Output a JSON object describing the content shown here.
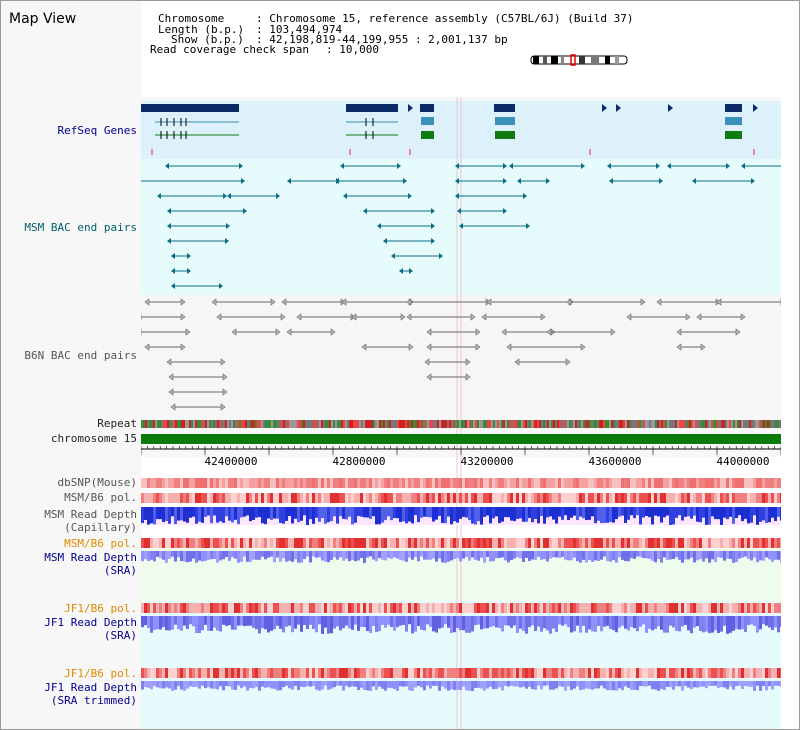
{
  "title": "Map View",
  "info": {
    "chromosome_label": "Chromosome",
    "chromosome_value": ": Chromosome 15, reference assembly (C57BL/6J) (Build 37)",
    "length_label": "Length (b.p.)",
    "length_value": ": 103,494,974",
    "show_label": "Show (b.p.)",
    "show_value": ": 42,198,819-44,199,955 : 2,001,137 bp",
    "coverage_label": "Read coverage check span",
    "coverage_value": ": 10,000"
  },
  "tracks": {
    "refseq": "RefSeq Genes",
    "msm_bac": "MSM BAC end pairs",
    "b6n_bac": "B6N BAC end pairs",
    "repeat": "Repeat",
    "chromosome": "chromosome 15",
    "dbsnp": "dbSNP(Mouse)",
    "msm_b6_pol": "MSM/B6 pol.",
    "msm_depth_1": "MSM Read Depth",
    "msm_depth_1b": "(Capillary)",
    "msm_b6_pol2": "MSM/B6 pol.",
    "msm_depth_2": "MSM Read Depth",
    "msm_depth_2b": "(SRA)",
    "jf1_pol": "JF1/B6 pol.",
    "jf1_depth": "JF1 Read Depth",
    "jf1_depth_b": "(SRA)",
    "jf1_pol2": "JF1/B6 pol.",
    "jf1_depth2": "JF1 Read Depth",
    "jf1_depth2_b": "(SRA trimmed)"
  },
  "axis": {
    "ticks": [
      "42400000",
      "42800000",
      "43200000",
      "43600000",
      "44000000"
    ]
  },
  "colors": {
    "refseq_bg": "#dff2fb",
    "msm_bac_bg": "#e6fbfb",
    "navy": "#0b2a66",
    "teal": "#0a6f86",
    "green": "#117a11",
    "chromosome_green": "#0a7a0a",
    "blue_depth": "#1a2fd8",
    "light_depth": "#8080ff"
  }
}
